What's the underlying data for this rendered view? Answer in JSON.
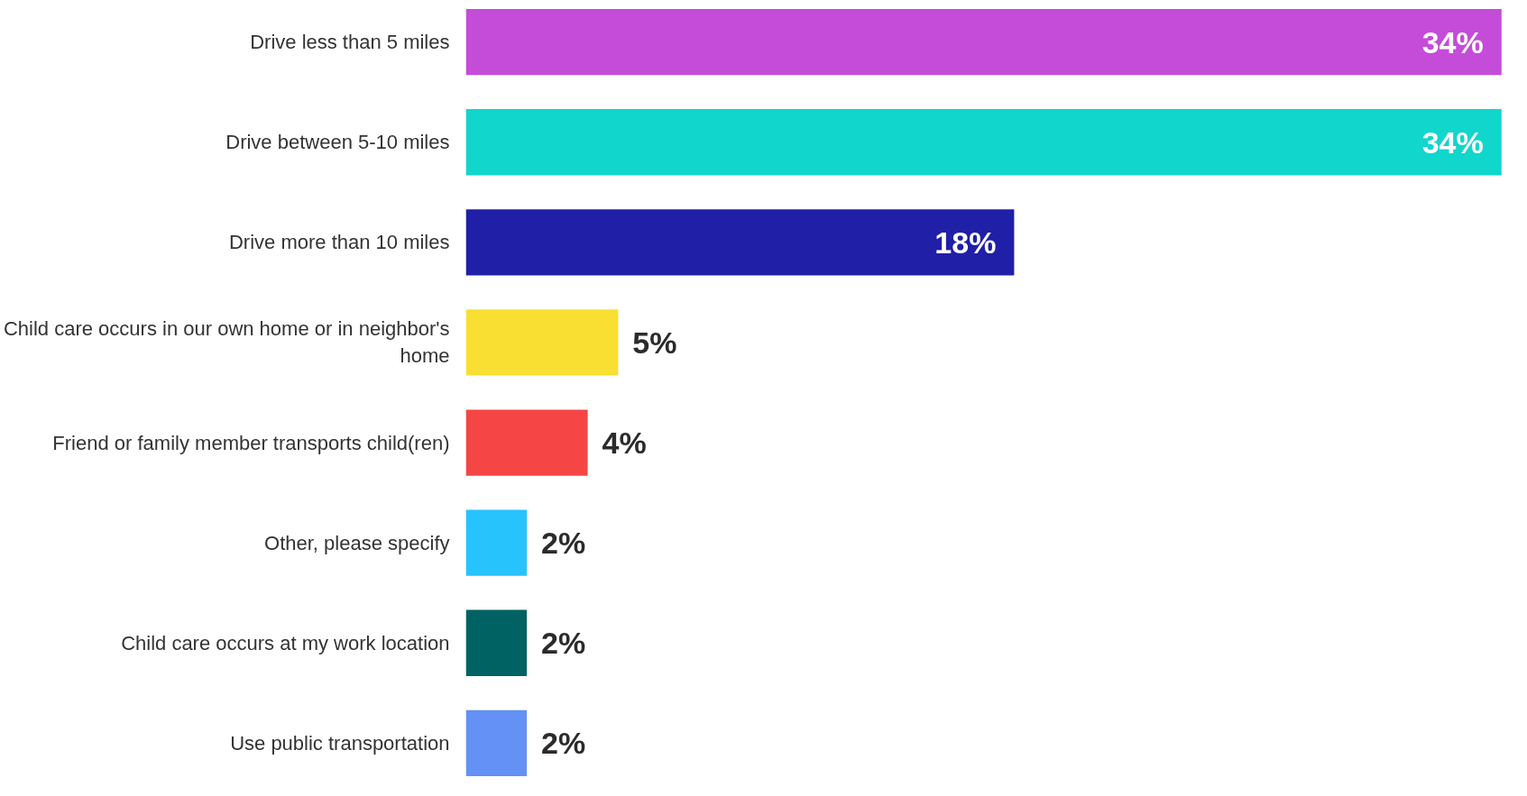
{
  "chart_data": {
    "type": "bar",
    "orientation": "horizontal",
    "categories": [
      "Drive less than 5 miles",
      "Drive between 5-10 miles",
      "Drive more than 10 miles",
      "Child care occurs in our own home or in neighbor's home",
      "Friend or family member transports child(ren)",
      "Other, please specify",
      "Child care occurs at my work location",
      "Use public transportation"
    ],
    "values": [
      34,
      34,
      18,
      5,
      4,
      2,
      2,
      2
    ],
    "colors": [
      "#c44cd9",
      "#10d6cc",
      "#1f1fa8",
      "#f9df32",
      "#f54545",
      "#27c3fd",
      "#006262",
      "#6391f5"
    ],
    "value_labels": [
      "34%",
      "34%",
      "18%",
      "5%",
      "4%",
      "2%",
      "2%",
      "2%"
    ]
  }
}
